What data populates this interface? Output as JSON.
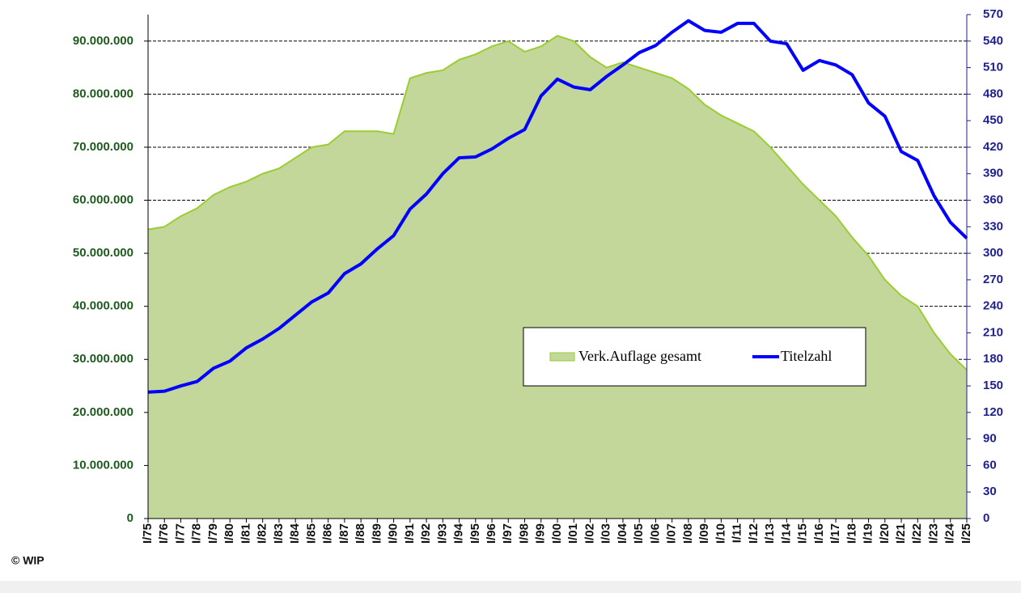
{
  "chart_data": {
    "type": "combo",
    "categories": [
      "I/75",
      "I/76",
      "I/77",
      "I/78",
      "I/79",
      "I/80",
      "I/81",
      "I/82",
      "I/83",
      "I/84",
      "I/85",
      "I/86",
      "I/87",
      "I/88",
      "I/89",
      "I/90",
      "I/91",
      "I/92",
      "I/93",
      "I/94",
      "I/95",
      "I/96",
      "I/97",
      "I/98",
      "I/99",
      "I/00",
      "I/01",
      "I/02",
      "I/03",
      "I/04",
      "I/05",
      "I/06",
      "I/07",
      "I/08",
      "I/09",
      "I/10",
      "I/11",
      "I/12",
      "I/13",
      "I/14",
      "I/15",
      "I/16",
      "I/17",
      "I/18",
      "I/19",
      "I/20",
      "I/21",
      "I/22",
      "I/23",
      "I/24",
      "I/25"
    ],
    "series": [
      {
        "name": "Verk.Auflage gesamt",
        "type": "area",
        "color": "#c4d79b",
        "line_color": "#9acd32",
        "values": [
          54500000,
          55000000,
          57000000,
          58500000,
          61000000,
          62500000,
          63500000,
          65000000,
          66000000,
          68000000,
          70000000,
          70500000,
          73000000,
          73000000,
          73000000,
          72500000,
          83000000,
          84000000,
          84500000,
          86500000,
          87500000,
          89000000,
          90000000,
          88000000,
          89000000,
          91000000,
          90000000,
          87000000,
          85000000,
          86000000,
          85000000,
          84000000,
          83000000,
          81000000,
          78000000,
          76000000,
          74500000,
          73000000,
          70000000,
          66500000,
          63000000,
          60000000,
          57000000,
          53000000,
          49500000,
          45000000,
          42000000,
          40000000,
          35000000,
          31000000,
          28000000
        ]
      },
      {
        "name": "Titelzahl",
        "type": "line",
        "axis": "y2",
        "color": "#0000ff",
        "values": [
          143,
          144,
          150,
          155,
          170,
          178,
          193,
          203,
          215,
          230,
          245,
          255,
          277,
          288,
          305,
          320,
          350,
          367,
          390,
          408,
          409,
          418,
          430,
          440,
          478,
          497,
          488,
          485,
          500,
          513,
          527,
          535,
          550,
          563,
          552,
          550,
          560,
          560,
          540,
          537,
          507,
          518,
          513,
          502,
          470,
          455,
          415,
          405,
          365,
          335,
          317
        ]
      }
    ],
    "ylim": [
      0,
      95000000
    ],
    "yticks": [
      0,
      {
        "value": 10000000,
        "label": "10.000.000"
      },
      {
        "value": 20000000,
        "label": "20.000.000"
      },
      {
        "value": 30000000,
        "label": "30.000.000"
      },
      {
        "value": 40000000,
        "label": "40.000.000"
      },
      {
        "value": 50000000,
        "label": "50.000.000"
      },
      {
        "value": 60000000,
        "label": "60.000.000"
      },
      {
        "value": 70000000,
        "label": "70.000.000"
      },
      {
        "value": 80000000,
        "label": "80.000.000"
      },
      {
        "value": 90000000,
        "label": "90.000.000"
      }
    ],
    "y2lim": [
      0,
      570
    ],
    "y2ticks": [
      0,
      30,
      60,
      90,
      120,
      150,
      180,
      210,
      240,
      270,
      300,
      330,
      360,
      390,
      420,
      450,
      480,
      510,
      540,
      570
    ],
    "grid": true,
    "copyright": "© WIP"
  }
}
